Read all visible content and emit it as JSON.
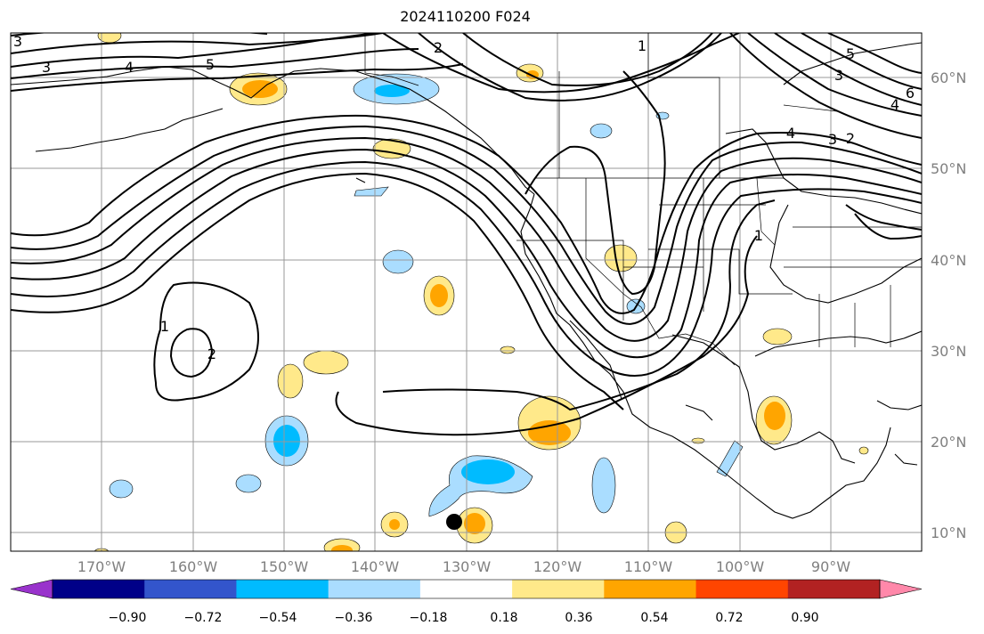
{
  "title": "2024110200 F024",
  "map": {
    "lat_labels": [
      "60°N",
      "50°N",
      "40°N",
      "30°N",
      "20°N",
      "10°N"
    ],
    "lon_labels": [
      "170°W",
      "160°W",
      "150°W",
      "140°W",
      "130°W",
      "120°W",
      "110°W",
      "100°W",
      "90°W"
    ],
    "contour_labels": [
      "3",
      "3",
      "4",
      "5",
      "2",
      "1",
      "5",
      "3",
      "6",
      "4",
      "4",
      "3",
      "2",
      "1",
      "1",
      "2"
    ],
    "marker": "black-dot"
  },
  "colorbar": {
    "colors": [
      "#9933cc",
      "#000088",
      "#3355cc",
      "#00bbff",
      "#aaddff",
      "#ffffff",
      "#ffe98a",
      "#ffa500",
      "#ff4500",
      "#b22222",
      "#ff88aa"
    ],
    "tick_labels": [
      "−0.90",
      "−0.72",
      "−0.54",
      "−0.36",
      "−0.18",
      "0.18",
      "0.36",
      "0.54",
      "0.72",
      "0.90"
    ]
  }
}
